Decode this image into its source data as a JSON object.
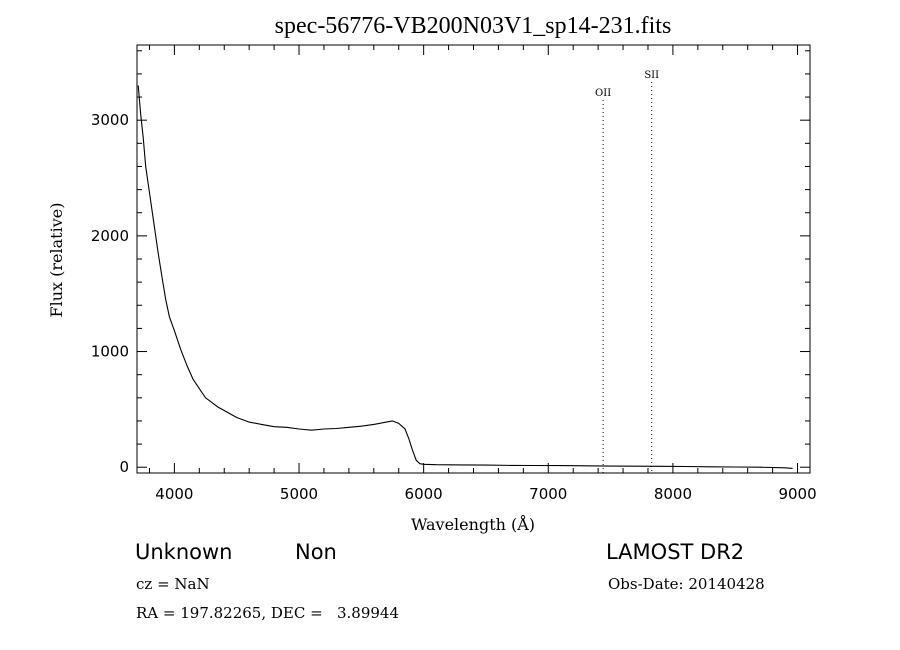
{
  "chart_data": {
    "type": "line",
    "title": "spec-56776-VB200N03V1_sp14-231.fits",
    "xlabel": "Wavelength (Å)",
    "ylabel": "Flux (relative)",
    "xlim": [
      3700,
      9100
    ],
    "ylim": [
      -50,
      3650
    ],
    "xticks": [
      4000,
      5000,
      6000,
      7000,
      8000,
      9000
    ],
    "yticks": [
      0,
      1000,
      2000,
      3000
    ],
    "grid": false,
    "series": [
      {
        "x": [
          3710,
          3730,
          3750,
          3770,
          3790,
          3810,
          3830,
          3850,
          3870,
          3900,
          3930,
          3960,
          4000,
          4050,
          4100,
          4150,
          4200,
          4250,
          4300,
          4350,
          4400,
          4500,
          4600,
          4700,
          4800,
          4900,
          5000,
          5100,
          5200,
          5300,
          5400,
          5500,
          5600,
          5700,
          5750,
          5800,
          5850,
          5880,
          5910,
          5940,
          5970,
          6000,
          6100,
          6300,
          6500,
          6700,
          6900,
          7100,
          7300,
          7500,
          7700,
          7900,
          8100,
          8300,
          8500,
          8700,
          8900,
          8960
        ],
        "y": [
          3300,
          3050,
          2850,
          2600,
          2450,
          2300,
          2150,
          2000,
          1850,
          1650,
          1450,
          1300,
          1180,
          1020,
          880,
          760,
          680,
          600,
          560,
          520,
          490,
          430,
          390,
          370,
          350,
          345,
          330,
          320,
          330,
          335,
          345,
          355,
          370,
          390,
          400,
          380,
          330,
          250,
          150,
          60,
          30,
          25,
          22,
          20,
          18,
          16,
          15,
          14,
          12,
          10,
          9,
          8,
          6,
          4,
          2,
          0,
          -5,
          -10
        ]
      }
    ],
    "lines": [
      {
        "label": "OII",
        "x": 7440
      },
      {
        "label": "SII",
        "x": 7830
      }
    ]
  },
  "footer": {
    "object_class": "Unknown",
    "subclass": "Non",
    "cz": "cz = NaN",
    "coords": "RA = 197.82265, DEC =   3.89944",
    "survey": "LAMOST DR2",
    "obs_date": "Obs-Date: 20140428"
  }
}
